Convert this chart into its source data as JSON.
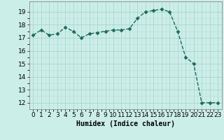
{
  "x": [
    0,
    1,
    2,
    3,
    4,
    5,
    6,
    7,
    8,
    9,
    10,
    11,
    12,
    13,
    14,
    15,
    16,
    17,
    18,
    19,
    20,
    21,
    22,
    23
  ],
  "y": [
    17.2,
    17.6,
    17.2,
    17.3,
    17.8,
    17.5,
    17.0,
    17.3,
    17.4,
    17.5,
    17.6,
    17.6,
    17.7,
    18.5,
    19.0,
    19.1,
    19.2,
    19.0,
    17.5,
    15.5,
    15.0,
    12.0,
    12.0,
    12.0
  ],
  "line_color": "#1a6b5a",
  "marker": "D",
  "marker_size": 2.5,
  "bg_color": "#cceee8",
  "grid_major_color": "#aad4cc",
  "grid_minor_color": "#bbddd8",
  "xlabel": "Humidex (Indice chaleur)",
  "ylim": [
    11.5,
    19.8
  ],
  "xlim": [
    -0.5,
    23.5
  ],
  "yticks": [
    12,
    13,
    14,
    15,
    16,
    17,
    18,
    19
  ],
  "xticks": [
    0,
    1,
    2,
    3,
    4,
    5,
    6,
    7,
    8,
    9,
    10,
    11,
    12,
    13,
    14,
    15,
    16,
    17,
    18,
    19,
    20,
    21,
    22,
    23
  ],
  "xlabel_fontsize": 7,
  "tick_fontsize": 6.5,
  "linewidth": 1.0
}
